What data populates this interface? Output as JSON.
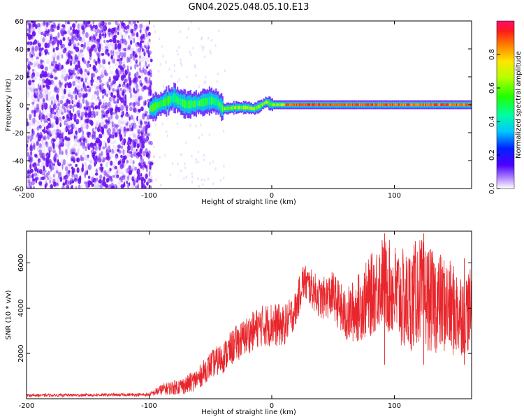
{
  "title": "GN04.2025.048.05.10.E13",
  "colors": {
    "signal": "#e8262b",
    "cloud": "#7a1cf0",
    "frame": "#000000"
  },
  "chart_data": [
    {
      "type": "heatmap",
      "xlabel": "Height of straight line (km)",
      "ylabel": "Frequency (Hz)",
      "xlim": [
        -200,
        163
      ],
      "ylim": [
        -60,
        60
      ],
      "xticks": [
        -200,
        -100,
        0,
        100
      ],
      "xtick_labels": [
        "-200",
        "-100",
        "0",
        "100"
      ],
      "yticks": [
        60,
        40,
        20,
        0,
        -20,
        -40,
        -60
      ],
      "ytick_labels": [
        "60",
        "40",
        "20",
        "0",
        "-20",
        "-40",
        "-60"
      ],
      "noise_region": {
        "x": [
          -200,
          -98
        ],
        "y": [
          -60,
          60
        ]
      },
      "band_track": {
        "x": [
          -100,
          -95,
          -90,
          -85,
          -80,
          -75,
          -70,
          -60,
          -50,
          -45,
          -40,
          -30,
          -20,
          -15,
          -10,
          -5,
          0,
          10,
          50,
          100,
          163
        ],
        "freq": [
          -3,
          -1,
          1,
          3,
          5,
          2,
          0,
          1,
          3,
          2,
          -3,
          -2,
          -2,
          -3,
          -1,
          2,
          0,
          0,
          0,
          0,
          0
        ]
      },
      "colorbar": {
        "label": "Normalized spectral amplitude",
        "range": [
          0,
          1
        ],
        "ticks": [
          0.0,
          0.2,
          0.4,
          0.6,
          0.8
        ],
        "tick_labels": [
          "0.0",
          "0.2",
          "0.4",
          "0.6",
          "0.8"
        ]
      }
    },
    {
      "type": "line",
      "xlabel": "Height of straight line (km)",
      "ylabel": "SNR (10 * v/v)",
      "xlim": [
        -200,
        163
      ],
      "ylim": [
        0,
        7400
      ],
      "xticks": [
        -200,
        -100,
        0,
        100
      ],
      "xtick_labels": [
        "-200",
        "-100",
        "0",
        "100"
      ],
      "yticks": [
        2000,
        4000,
        6000
      ],
      "ytick_labels": [
        "2000",
        "4000",
        "6000"
      ],
      "envelope": {
        "x": [
          -200,
          -100,
          -90,
          -80,
          -70,
          -60,
          -50,
          -40,
          -30,
          -20,
          -10,
          0,
          10,
          20,
          25,
          30,
          40,
          50,
          60,
          70,
          80,
          90,
          100,
          110,
          120,
          130,
          140,
          150,
          163
        ],
        "y": [
          150,
          180,
          400,
          500,
          600,
          900,
          1500,
          1800,
          2400,
          2800,
          3200,
          3300,
          3200,
          4000,
          5200,
          5000,
          4400,
          4600,
          3600,
          4000,
          4500,
          5200,
          4700,
          4200,
          4800,
          4300,
          4200,
          3800,
          3900
        ]
      },
      "spread": {
        "x": [
          -200,
          -100,
          -90,
          -70,
          -50,
          -30,
          -10,
          0,
          20,
          40,
          60,
          80,
          100,
          120,
          140,
          163
        ],
        "y": [
          60,
          70,
          250,
          400,
          600,
          800,
          900,
          1000,
          800,
          900,
          1200,
          1800,
          2200,
          2400,
          2200,
          1800
        ]
      },
      "peak_markers": {
        "x": [
          92,
          124,
          157
        ],
        "y": [
          7300,
          7300,
          6200
        ]
      }
    }
  ]
}
